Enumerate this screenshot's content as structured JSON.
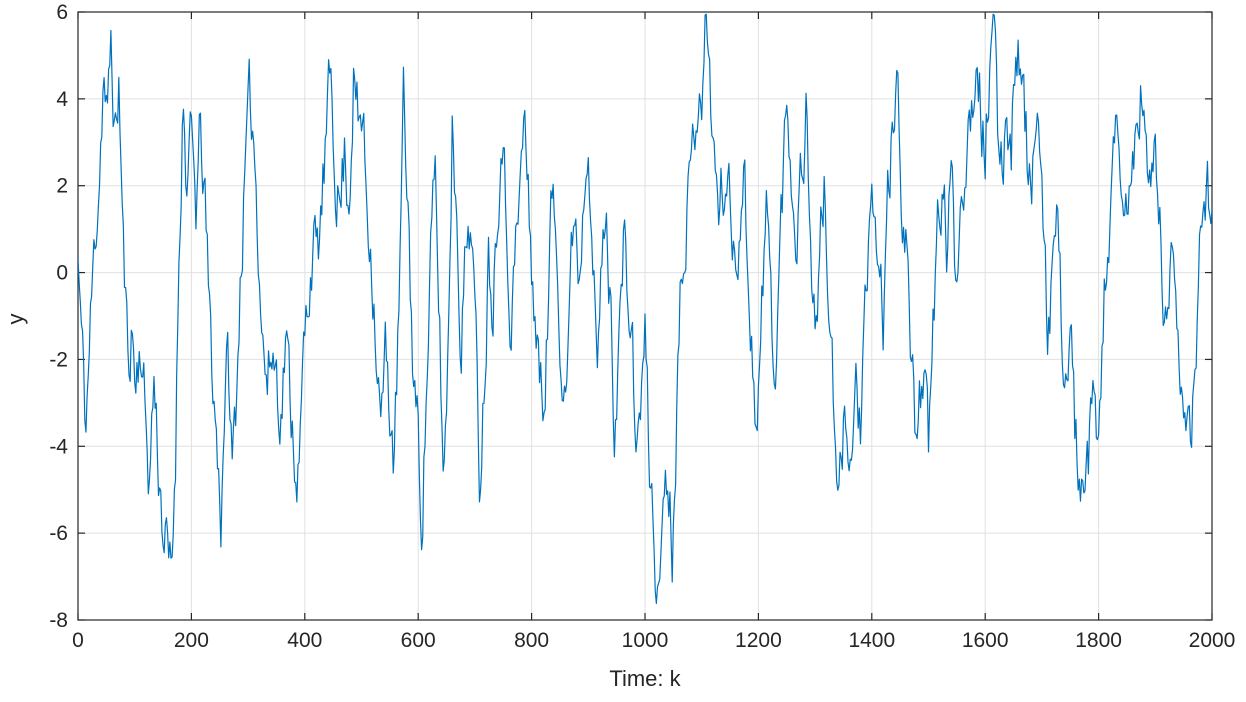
{
  "chart_data": {
    "type": "line",
    "title": "",
    "xlabel": "Time: k",
    "ylabel": "y",
    "xlim": [
      0,
      2000
    ],
    "ylim": [
      -8,
      6
    ],
    "xticks": [
      0,
      200,
      400,
      600,
      800,
      1000,
      1200,
      1400,
      1600,
      1800,
      2000
    ],
    "yticks": [
      -8,
      -6,
      -4,
      -2,
      0,
      2,
      4,
      6
    ],
    "grid": true,
    "legend_position": "none",
    "line_color": "#0072BD",
    "axis_color": "#262626",
    "grid_color": "#E0E0E0",
    "background_color": "#FFFFFF",
    "y_range_observed": [
      -7.8,
      5.9
    ],
    "series": [
      {
        "name": "y",
        "keypoints": [
          [
            0,
            0.3
          ],
          [
            8,
            -2.0
          ],
          [
            14,
            -3.5
          ],
          [
            22,
            -1.2
          ],
          [
            30,
            0.8
          ],
          [
            38,
            2.5
          ],
          [
            45,
            4.7
          ],
          [
            52,
            3.2
          ],
          [
            58,
            5.3
          ],
          [
            66,
            3.0
          ],
          [
            72,
            4.4
          ],
          [
            80,
            0.5
          ],
          [
            88,
            -2.0
          ],
          [
            95,
            -1.2
          ],
          [
            102,
            -2.6
          ],
          [
            110,
            -1.5
          ],
          [
            118,
            -3.2
          ],
          [
            126,
            -4.7
          ],
          [
            134,
            -2.4
          ],
          [
            142,
            -4.4
          ],
          [
            150,
            -5.8
          ],
          [
            158,
            -6.6
          ],
          [
            165,
            -7.2
          ],
          [
            172,
            -4.0
          ],
          [
            178,
            0.5
          ],
          [
            185,
            4.1
          ],
          [
            192,
            2.0
          ],
          [
            200,
            2.9
          ],
          [
            208,
            1.5
          ],
          [
            215,
            3.0
          ],
          [
            222,
            2.2
          ],
          [
            230,
            -0.5
          ],
          [
            238,
            -2.5
          ],
          [
            246,
            -4.2
          ],
          [
            252,
            -5.6
          ],
          [
            258,
            -3.0
          ],
          [
            265,
            -2.0
          ],
          [
            272,
            -4.6
          ],
          [
            280,
            -2.5
          ],
          [
            288,
            0.5
          ],
          [
            296,
            2.5
          ],
          [
            303,
            3.8
          ],
          [
            310,
            3.2
          ],
          [
            318,
            1.0
          ],
          [
            326,
            -1.5
          ],
          [
            334,
            -2.6
          ],
          [
            342,
            -1.8
          ],
          [
            350,
            -2.2
          ],
          [
            358,
            -3.2
          ],
          [
            366,
            -1.5
          ],
          [
            374,
            -2.8
          ],
          [
            382,
            -4.0
          ],
          [
            390,
            -4.6
          ],
          [
            398,
            -2.0
          ],
          [
            406,
            -0.5
          ],
          [
            414,
            0.8
          ],
          [
            422,
            0.2
          ],
          [
            430,
            1.5
          ],
          [
            438,
            3.0
          ],
          [
            446,
            4.5
          ],
          [
            454,
            2.5
          ],
          [
            462,
            1.5
          ],
          [
            470,
            2.8
          ],
          [
            478,
            1.8
          ],
          [
            486,
            4.6
          ],
          [
            494,
            3.3
          ],
          [
            502,
            3.6
          ],
          [
            510,
            1.5
          ],
          [
            518,
            0.5
          ],
          [
            526,
            -1.5
          ],
          [
            534,
            -3.6
          ],
          [
            542,
            -2.0
          ],
          [
            550,
            -3.0
          ],
          [
            558,
            -4.4
          ],
          [
            566,
            -1.0
          ],
          [
            574,
            3.7
          ],
          [
            582,
            1.5
          ],
          [
            590,
            -1.8
          ],
          [
            598,
            -3.5
          ],
          [
            606,
            -5.5
          ],
          [
            614,
            -3.0
          ],
          [
            622,
            0.5
          ],
          [
            630,
            1.9
          ],
          [
            638,
            -1.5
          ],
          [
            645,
            -4.9
          ],
          [
            652,
            -2.0
          ],
          [
            660,
            3.5
          ],
          [
            668,
            1.5
          ],
          [
            676,
            -1.5
          ],
          [
            684,
            0.5
          ],
          [
            692,
            1.5
          ],
          [
            700,
            -1.0
          ],
          [
            708,
            -4.6
          ],
          [
            716,
            -2.5
          ],
          [
            724,
            0.5
          ],
          [
            732,
            -0.5
          ],
          [
            740,
            2.0
          ],
          [
            748,
            3.5
          ],
          [
            756,
            1.0
          ],
          [
            764,
            -1.0
          ],
          [
            772,
            0.5
          ],
          [
            780,
            2.0
          ],
          [
            788,
            3.6
          ],
          [
            796,
            1.0
          ],
          [
            804,
            -0.5
          ],
          [
            812,
            -2.0
          ],
          [
            820,
            -3.3
          ],
          [
            828,
            -1.0
          ],
          [
            836,
            1.8
          ],
          [
            844,
            0.5
          ],
          [
            852,
            -1.5
          ],
          [
            860,
            -2.5
          ],
          [
            868,
            -0.5
          ],
          [
            876,
            1.7
          ],
          [
            884,
            0.0
          ],
          [
            892,
            2.0
          ],
          [
            900,
            3.9
          ],
          [
            908,
            0.5
          ],
          [
            915,
            -2.5
          ],
          [
            922,
            -0.5
          ],
          [
            930,
            1.5
          ],
          [
            938,
            -0.5
          ],
          [
            946,
            -3.3
          ],
          [
            954,
            -1.5
          ],
          [
            962,
            0.5
          ],
          [
            970,
            -0.5
          ],
          [
            978,
            -2.0
          ],
          [
            986,
            -4.3
          ],
          [
            994,
            -2.5
          ],
          [
            1000,
            -1.5
          ],
          [
            1008,
            -4.5
          ],
          [
            1016,
            -6.0
          ],
          [
            1024,
            -7.8
          ],
          [
            1032,
            -5.0
          ],
          [
            1040,
            -4.5
          ],
          [
            1048,
            -6.2
          ],
          [
            1056,
            -3.0
          ],
          [
            1064,
            0.5
          ],
          [
            1072,
            1.5
          ],
          [
            1080,
            2.0
          ],
          [
            1088,
            3.5
          ],
          [
            1096,
            4.7
          ],
          [
            1102,
            4.3
          ],
          [
            1108,
            5.9
          ],
          [
            1115,
            4.5
          ],
          [
            1122,
            2.5
          ],
          [
            1130,
            1.5
          ],
          [
            1138,
            2.0
          ],
          [
            1145,
            2.3
          ],
          [
            1152,
            1.0
          ],
          [
            1160,
            0.5
          ],
          [
            1168,
            1.5
          ],
          [
            1175,
            2.2
          ],
          [
            1182,
            0.0
          ],
          [
            1190,
            -2.0
          ],
          [
            1198,
            -3.6
          ],
          [
            1206,
            -1.0
          ],
          [
            1214,
            1.5
          ],
          [
            1222,
            -0.5
          ],
          [
            1230,
            -2.7
          ],
          [
            1238,
            0.5
          ],
          [
            1246,
            3.0
          ],
          [
            1252,
            3.8
          ],
          [
            1260,
            2.0
          ],
          [
            1268,
            1.0
          ],
          [
            1276,
            2.5
          ],
          [
            1284,
            3.7
          ],
          [
            1292,
            1.0
          ],
          [
            1300,
            -1.5
          ],
          [
            1308,
            0.5
          ],
          [
            1316,
            1.8
          ],
          [
            1324,
            -0.5
          ],
          [
            1332,
            -3.0
          ],
          [
            1340,
            -5.9
          ],
          [
            1348,
            -4.0
          ],
          [
            1356,
            -3.0
          ],
          [
            1364,
            -4.5
          ],
          [
            1372,
            -2.5
          ],
          [
            1380,
            -3.5
          ],
          [
            1388,
            -1.5
          ],
          [
            1396,
            0.5
          ],
          [
            1404,
            1.6
          ],
          [
            1412,
            0.0
          ],
          [
            1420,
            -1.0
          ],
          [
            1428,
            1.5
          ],
          [
            1436,
            3.0
          ],
          [
            1444,
            4.3
          ],
          [
            1452,
            2.0
          ],
          [
            1460,
            1.0
          ],
          [
            1468,
            -1.5
          ],
          [
            1476,
            -3.8
          ],
          [
            1484,
            -2.5
          ],
          [
            1492,
            -2.0
          ],
          [
            1500,
            -4.5
          ],
          [
            1508,
            -1.5
          ],
          [
            1516,
            1.0
          ],
          [
            1524,
            2.0
          ],
          [
            1532,
            0.5
          ],
          [
            1540,
            2.2
          ],
          [
            1548,
            0.0
          ],
          [
            1556,
            1.5
          ],
          [
            1564,
            2.8
          ],
          [
            1572,
            3.5
          ],
          [
            1580,
            4.5
          ],
          [
            1586,
            5.5
          ],
          [
            1594,
            3.5
          ],
          [
            1600,
            3.0
          ],
          [
            1608,
            4.5
          ],
          [
            1615,
            5.5
          ],
          [
            1622,
            3.0
          ],
          [
            1630,
            2.5
          ],
          [
            1638,
            4.0
          ],
          [
            1646,
            3.0
          ],
          [
            1654,
            5.6
          ],
          [
            1662,
            4.8
          ],
          [
            1670,
            3.5
          ],
          [
            1678,
            2.0
          ],
          [
            1686,
            2.8
          ],
          [
            1694,
            3.5
          ],
          [
            1702,
            0.5
          ],
          [
            1710,
            -1.5
          ],
          [
            1718,
            0.0
          ],
          [
            1726,
            1.0
          ],
          [
            1734,
            -1.0
          ],
          [
            1742,
            -2.3
          ],
          [
            1750,
            -1.5
          ],
          [
            1758,
            -3.5
          ],
          [
            1766,
            -4.8
          ],
          [
            1774,
            -6.0
          ],
          [
            1782,
            -4.5
          ],
          [
            1790,
            -3.0
          ],
          [
            1798,
            -4.3
          ],
          [
            1806,
            -2.0
          ],
          [
            1814,
            0.5
          ],
          [
            1822,
            1.5
          ],
          [
            1830,
            2.8
          ],
          [
            1838,
            1.8
          ],
          [
            1846,
            1.0
          ],
          [
            1854,
            2.0
          ],
          [
            1862,
            2.5
          ],
          [
            1870,
            3.6
          ],
          [
            1877,
            4.4
          ],
          [
            1884,
            2.5
          ],
          [
            1892,
            1.5
          ],
          [
            1900,
            3.3
          ],
          [
            1908,
            1.0
          ],
          [
            1916,
            -1.5
          ],
          [
            1924,
            -0.5
          ],
          [
            1932,
            0.5
          ],
          [
            1940,
            -1.0
          ],
          [
            1948,
            -2.5
          ],
          [
            1956,
            -3.8
          ],
          [
            1964,
            -4.6
          ],
          [
            1972,
            -1.5
          ],
          [
            1980,
            1.0
          ],
          [
            1988,
            2.0
          ],
          [
            1996,
            1.8
          ],
          [
            2000,
            1.2
          ]
        ]
      }
    ],
    "noise": {
      "seed": 11,
      "ar": 0.55,
      "sigma": 0.75,
      "step": 2
    }
  }
}
